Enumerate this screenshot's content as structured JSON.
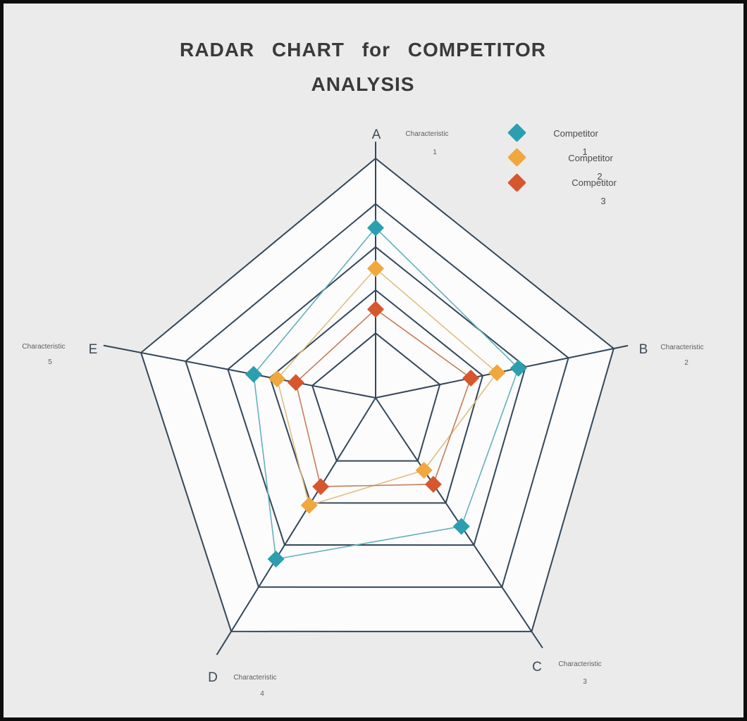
{
  "frame": {
    "background": "#ebebeb",
    "border_color": "#0d0d0d",
    "chart_fill": "#fcfcfc",
    "grid_color": "#33475a",
    "letter_color": "#3d4a57",
    "sublabel_color": "#5f5f5f"
  },
  "title": {
    "line1": "RADAR CHART for COMPETITOR",
    "line2": "ANALYSIS"
  },
  "legend": {
    "items": [
      {
        "label": "Competitor",
        "number": "1",
        "color": "#2b9fb0"
      },
      {
        "label": "Competitor",
        "number": "2",
        "color": "#f0a73d"
      },
      {
        "label": "Competitor",
        "number": "3",
        "color": "#d6572d"
      }
    ]
  },
  "chart_data": {
    "type": "radar",
    "title": "RADAR CHART for COMPETITOR ANALYSIS",
    "scale_max": 5,
    "levels": 5,
    "grid": "on",
    "legend_position": "top-right",
    "ring_fractions": [
      0.27,
      0.45,
      0.63,
      0.81,
      1.0
    ],
    "center": [
      528,
      560
    ],
    "axes": [
      {
        "letter": "A",
        "characteristic": "Characteristic",
        "number": "1",
        "angle_deg": 90,
        "radius": 340,
        "ext": 1.07,
        "letter_pos": [
          529,
          192
        ],
        "sub_pos": [
          601,
          188
        ],
        "num_pos": [
          612,
          214
        ]
      },
      {
        "letter": "B",
        "characteristic": "Characteristic",
        "number": "2",
        "angle_deg": 11.7,
        "radius": 345,
        "ext": 1.06,
        "letter_pos": [
          908,
          497
        ],
        "sub_pos": [
          963,
          491
        ],
        "num_pos": [
          969,
          513
        ]
      },
      {
        "letter": "C",
        "characteristic": "Characteristic",
        "number": "3",
        "angle_deg": -56.3,
        "radius": 399,
        "ext": 1.07,
        "letter_pos": [
          757,
          948
        ],
        "sub_pos": [
          818,
          941
        ],
        "num_pos": [
          825,
          966
        ]
      },
      {
        "letter": "D",
        "characteristic": "Characteristic",
        "number": "4",
        "angle_deg": 238.3,
        "radius": 390,
        "ext": 1.1,
        "letter_pos": [
          297,
          963
        ],
        "sub_pos": [
          357,
          960
        ],
        "num_pos": [
          367,
          983
        ]
      },
      {
        "letter": "E",
        "characteristic": "Characteristic",
        "number": "5",
        "angle_deg": 169.1,
        "radius": 339,
        "ext": 1.16,
        "letter_pos": [
          127,
          497
        ],
        "sub_pos": [
          57,
          490
        ],
        "num_pos": [
          66,
          512
        ]
      }
    ],
    "series": [
      {
        "name": "Competitor 1",
        "marker_color": "#2b9fb0",
        "line_color": "#63b0bd",
        "values": [
          3.55,
          3.0,
          2.75,
          3.45,
          2.6
        ]
      },
      {
        "name": "Competitor 2",
        "marker_color": "#f0a73d",
        "line_color": "#e2bd80",
        "values": [
          2.7,
          2.55,
          1.55,
          2.3,
          2.1
        ]
      },
      {
        "name": "Competitor 3",
        "marker_color": "#d6572d",
        "line_color": "#c47d5b",
        "values": [
          1.85,
          2.0,
          1.85,
          1.9,
          1.7
        ]
      }
    ]
  }
}
